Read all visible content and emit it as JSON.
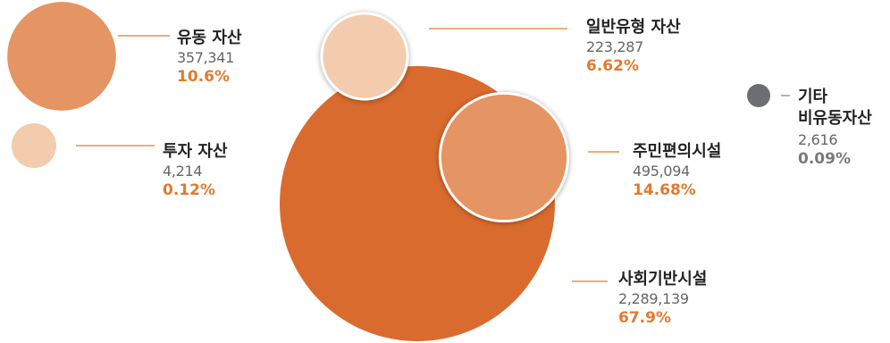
{
  "chart_data": {
    "type": "bubble",
    "title": "",
    "series": [
      {
        "key": "infra",
        "name": "사회기반시설",
        "value": 2289139,
        "value_label": "2,289,139",
        "percent": 67.9,
        "percent_label": "67.9%",
        "color": "#D96B2E"
      },
      {
        "key": "current",
        "name": "유동 자산",
        "value": 357341,
        "value_label": "357,341",
        "percent": 10.6,
        "percent_label": "10.6%",
        "color": "#E59463"
      },
      {
        "key": "general",
        "name": "일반유형 자산",
        "value": 223287,
        "value_label": "223,287",
        "percent": 6.62,
        "percent_label": "6.62%",
        "color": "#F3CBAD"
      },
      {
        "key": "resident",
        "name": "주민편의시설",
        "value": 495094,
        "value_label": "495,094",
        "percent": 14.68,
        "percent_label": "14.68%",
        "color": "#E59463"
      },
      {
        "key": "invest",
        "name": "투자 자산",
        "value": 4214,
        "value_label": "4,214",
        "percent": 0.12,
        "percent_label": "0.12%",
        "color": "#F3CBAD"
      },
      {
        "key": "other",
        "name": "기타\n비유동자산",
        "value": 2616,
        "value_label": "2,616",
        "percent": 0.09,
        "percent_label": "0.09%",
        "color": "#6D6E71"
      }
    ],
    "percent_color": "#E07A30",
    "other_percent_color": "#7A7A7A"
  }
}
